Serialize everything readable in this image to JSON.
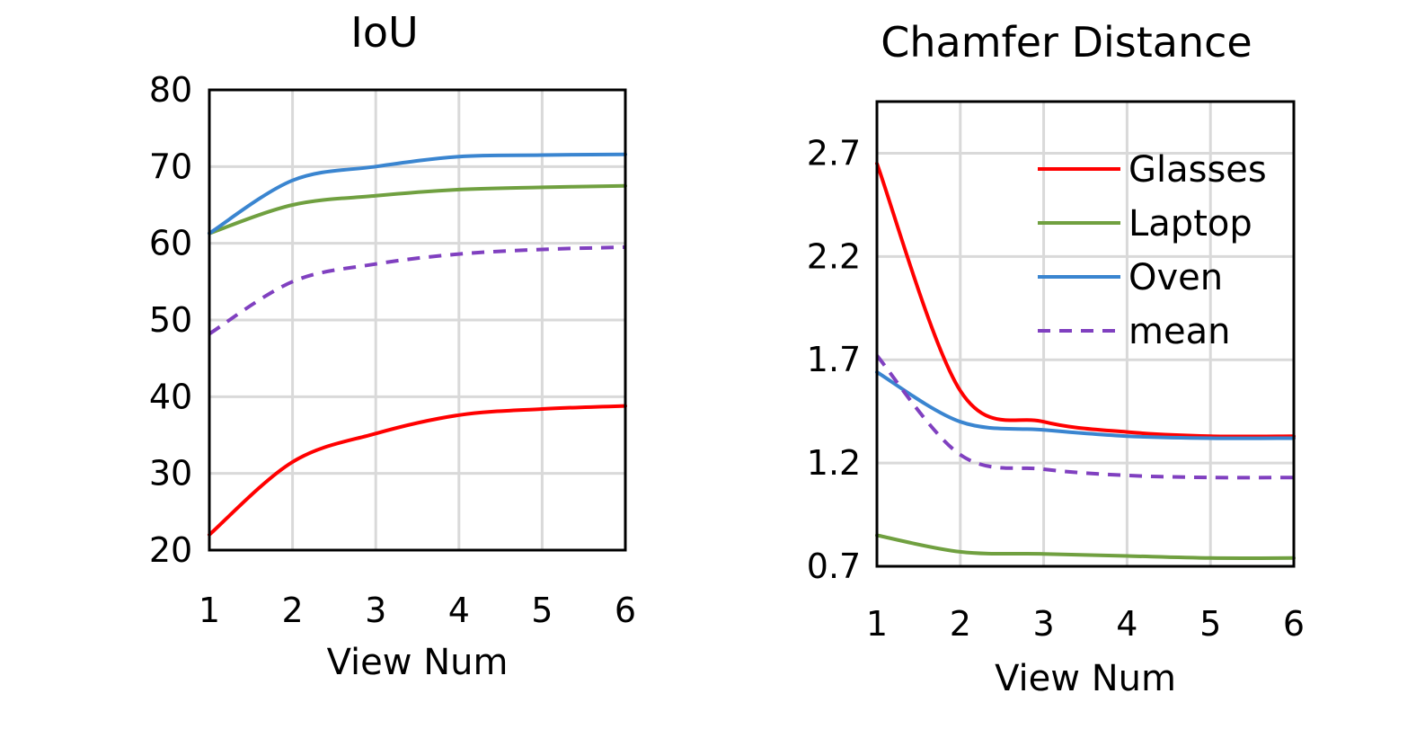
{
  "chart_data": [
    {
      "type": "line",
      "title": "IoU",
      "xlabel": "View Num",
      "ylabel": "",
      "x": [
        1,
        2,
        3,
        4,
        5,
        6
      ],
      "x_ticks": [
        "1",
        "2",
        "3",
        "4",
        "5",
        "6"
      ],
      "ylim": [
        20,
        80
      ],
      "y_ticks": [
        "20",
        "30",
        "40",
        "50",
        "60",
        "70",
        "80"
      ],
      "grid": true,
      "series": [
        {
          "name": "Glasses",
          "color": "#ff0000",
          "dashed": false,
          "values": [
            22.0,
            31.5,
            35.2,
            37.6,
            38.4,
            38.8
          ]
        },
        {
          "name": "Laptop",
          "color": "#70a040",
          "dashed": false,
          "values": [
            61.3,
            65.0,
            66.2,
            67.0,
            67.3,
            67.5
          ]
        },
        {
          "name": "Oven",
          "color": "#3a85d0",
          "dashed": false,
          "values": [
            61.3,
            68.2,
            70.0,
            71.3,
            71.5,
            71.6
          ]
        },
        {
          "name": "mean",
          "color": "#8040c0",
          "dashed": true,
          "values": [
            48.2,
            55.0,
            57.3,
            58.6,
            59.2,
            59.5
          ]
        }
      ]
    },
    {
      "type": "line",
      "title": "Chamfer Distance",
      "xlabel": "View Num",
      "ylabel": "",
      "x": [
        1,
        2,
        3,
        4,
        5,
        6
      ],
      "x_ticks": [
        "1",
        "2",
        "3",
        "4",
        "5",
        "6"
      ],
      "ylim": [
        0.7,
        2.95
      ],
      "y_ticks": [
        "0.7",
        "1.2",
        "1.7",
        "2.2",
        "2.7"
      ],
      "grid": true,
      "legend": "top-right",
      "series": [
        {
          "name": "Glasses",
          "color": "#ff0000",
          "dashed": false,
          "values": [
            2.65,
            1.55,
            1.4,
            1.35,
            1.33,
            1.33
          ]
        },
        {
          "name": "Laptop",
          "color": "#70a040",
          "dashed": false,
          "values": [
            0.85,
            0.77,
            0.76,
            0.75,
            0.74,
            0.74
          ]
        },
        {
          "name": "Oven",
          "color": "#3a85d0",
          "dashed": false,
          "values": [
            1.64,
            1.4,
            1.36,
            1.33,
            1.32,
            1.32
          ]
        },
        {
          "name": "mean",
          "color": "#8040c0",
          "dashed": true,
          "values": [
            1.72,
            1.24,
            1.17,
            1.14,
            1.13,
            1.13
          ]
        }
      ]
    }
  ]
}
